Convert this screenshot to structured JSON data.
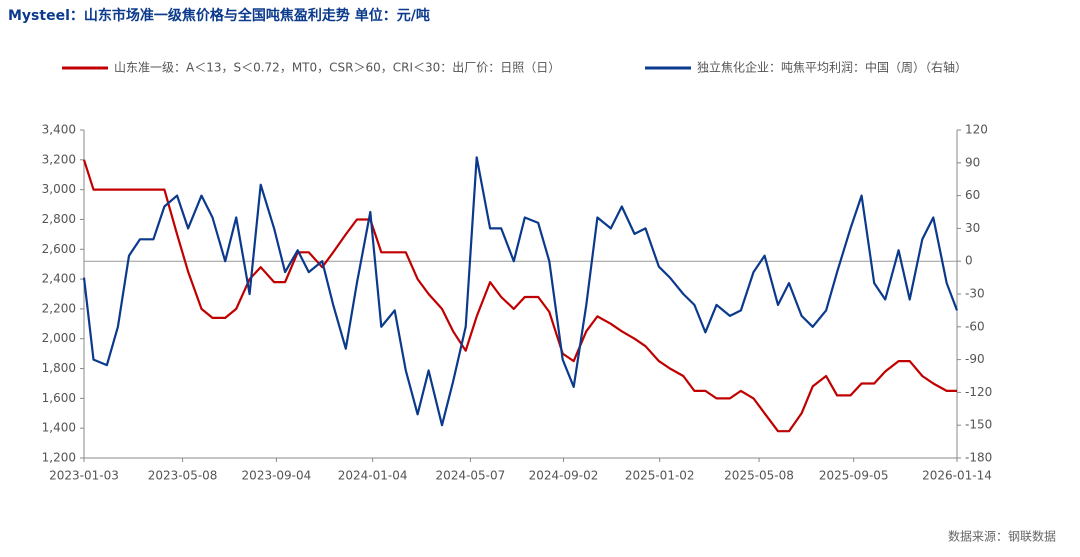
{
  "chart_data": {
    "type": "line",
    "title": "Mysteel：山东市场准一级焦价格与全国吨焦盈利走势  单位：元/吨",
    "source": "数据来源：钢联数据",
    "x": [
      "2023-01-03",
      "2023-01-15",
      "2023-02-01",
      "2023-02-15",
      "2023-03-01",
      "2023-03-15",
      "2023-04-01",
      "2023-04-15",
      "2023-05-01",
      "2023-05-15",
      "2023-06-01",
      "2023-06-15",
      "2023-07-01",
      "2023-07-15",
      "2023-08-01",
      "2023-08-15",
      "2023-09-01",
      "2023-09-15",
      "2023-10-01",
      "2023-10-15",
      "2023-11-01",
      "2023-11-15",
      "2023-12-01",
      "2023-12-15",
      "2024-01-01",
      "2024-01-15",
      "2024-02-01",
      "2024-02-15",
      "2024-03-01",
      "2024-03-15",
      "2024-04-01",
      "2024-04-15",
      "2024-05-01",
      "2024-05-15",
      "2024-06-01",
      "2024-06-15",
      "2024-07-01",
      "2024-07-15",
      "2024-08-01",
      "2024-08-15",
      "2024-09-01",
      "2024-09-15",
      "2024-10-01",
      "2024-10-15",
      "2024-11-01",
      "2024-11-15",
      "2024-12-01",
      "2024-12-15",
      "2025-01-01",
      "2025-01-15",
      "2025-02-01",
      "2025-02-15",
      "2025-03-01",
      "2025-03-15",
      "2025-04-01",
      "2025-04-15",
      "2025-05-01",
      "2025-05-15",
      "2025-06-01",
      "2025-06-15",
      "2025-07-01",
      "2025-07-15",
      "2025-08-01",
      "2025-08-15",
      "2025-09-01",
      "2025-09-15",
      "2025-10-01",
      "2025-10-15",
      "2025-11-01",
      "2025-11-15",
      "2025-12-01",
      "2025-12-15",
      "2026-01-01",
      "2026-01-14"
    ],
    "xlim": [
      "2023-01-03",
      "2026-01-14"
    ],
    "xticks": [
      "2023-01-03",
      "2023-05-08",
      "2023-09-04",
      "2024-01-04",
      "2024-05-07",
      "2024-09-02",
      "2025-01-02",
      "2025-05-08",
      "2025-09-05",
      "2026-01-14"
    ],
    "ylim": [
      1200,
      3400
    ],
    "yticks": [
      {
        "value": 1200,
        "label": "1,200"
      },
      {
        "value": 1400,
        "label": "1,400"
      },
      {
        "value": 1600,
        "label": "1,600"
      },
      {
        "value": 1800,
        "label": "1,800"
      },
      {
        "value": 2000,
        "label": "2,000"
      },
      {
        "value": 2200,
        "label": "2,200"
      },
      {
        "value": 2400,
        "label": "2,400"
      },
      {
        "value": 2600,
        "label": "2,600"
      },
      {
        "value": 2800,
        "label": "2,800"
      },
      {
        "value": 3000,
        "label": "3,000"
      },
      {
        "value": 3200,
        "label": "3,200"
      },
      {
        "value": 3400,
        "label": "3,400"
      }
    ],
    "y2lim": [
      -180,
      120
    ],
    "y2ticks": [
      -180,
      -150,
      -120,
      -90,
      -60,
      -30,
      0,
      30,
      60,
      90,
      120
    ],
    "legend": "top",
    "series": [
      {
        "name": "山东准一级：A＜13，S＜0.72，MT0，CSR＞60，CRI＜30：出厂价：日照（日）",
        "color": "#c00000",
        "values": [
          3200,
          3000,
          3000,
          3000,
          3000,
          3000,
          3000,
          3000,
          2700,
          2450,
          2200,
          2140,
          2140,
          2200,
          2400,
          2480,
          2380,
          2380,
          2580,
          2580,
          2480,
          2580,
          2700,
          2800,
          2800,
          2580,
          2580,
          2580,
          2400,
          2300,
          2200,
          2050,
          1920,
          2150,
          2380,
          2280,
          2200,
          2280,
          2280,
          2180,
          1900,
          1850,
          2050,
          2150,
          2100,
          2050,
          2000,
          1950,
          1850,
          1800,
          1750,
          1650,
          1650,
          1600,
          1600,
          1650,
          1600,
          1500,
          1380,
          1380,
          1500,
          1680,
          1750,
          1620,
          1620,
          1700,
          1700,
          1780,
          1850,
          1850,
          1750,
          1700,
          1650,
          1650
        ]
      },
      {
        "name": "独立焦化企业：吨焦平均利润：中国（周）（右轴）",
        "color": "#0b3a8c",
        "axis": "y2",
        "values": [
          -15,
          -90,
          -95,
          -60,
          5,
          20,
          20,
          50,
          60,
          30,
          60,
          40,
          0,
          40,
          -30,
          70,
          30,
          -10,
          10,
          -10,
          0,
          -40,
          -80,
          -20,
          45,
          -60,
          -45,
          -100,
          -140,
          -100,
          -150,
          -110,
          -60,
          95,
          30,
          30,
          0,
          40,
          35,
          0,
          -90,
          -115,
          -40,
          40,
          30,
          50,
          25,
          30,
          -5,
          -15,
          -30,
          -40,
          -65,
          -40,
          -50,
          -45,
          -10,
          5,
          -40,
          -20,
          -50,
          -60,
          -45,
          -10,
          30,
          60,
          -20,
          -35,
          10,
          -35,
          20,
          40,
          -20,
          -45
        ]
      }
    ]
  }
}
